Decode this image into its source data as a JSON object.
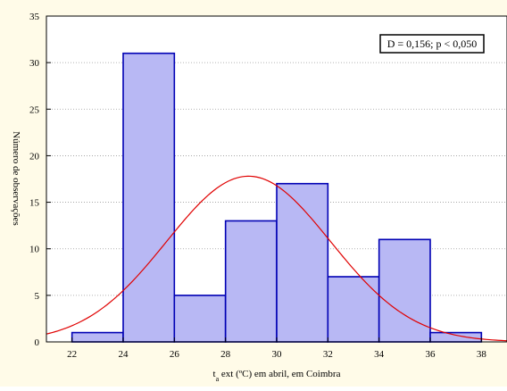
{
  "chart_data": {
    "type": "bar",
    "x_bin_edges": [
      22,
      24,
      26,
      28,
      30,
      32,
      34,
      36,
      38
    ],
    "values": [
      1,
      31,
      5,
      13,
      17,
      7,
      11,
      1
    ],
    "xlabel_main": "t",
    "xlabel_sub": "a",
    "xlabel_rest": " ext (ºC) em abril, em Coimbra",
    "ylabel": "Número de observações",
    "xlim": [
      21,
      39
    ],
    "ylim": [
      0,
      35
    ],
    "x_ticks": [
      "22",
      "24",
      "26",
      "28",
      "30",
      "32",
      "34",
      "36",
      "38"
    ],
    "y_ticks": [
      "0",
      "5",
      "10",
      "15",
      "20",
      "25",
      "30",
      "35"
    ],
    "grid": "horizontal dotted",
    "annotation": "D = 0,156; p < 0,050",
    "normal_curve": {
      "mean": 28.9,
      "sd": 3.2,
      "peak": 17.8
    },
    "colors": {
      "bar_fill": "#b8b8f4",
      "bar_stroke": "#0000b4",
      "curve": "#e00000",
      "background": "#fffbe8",
      "plot_background": "#ffffff"
    }
  }
}
